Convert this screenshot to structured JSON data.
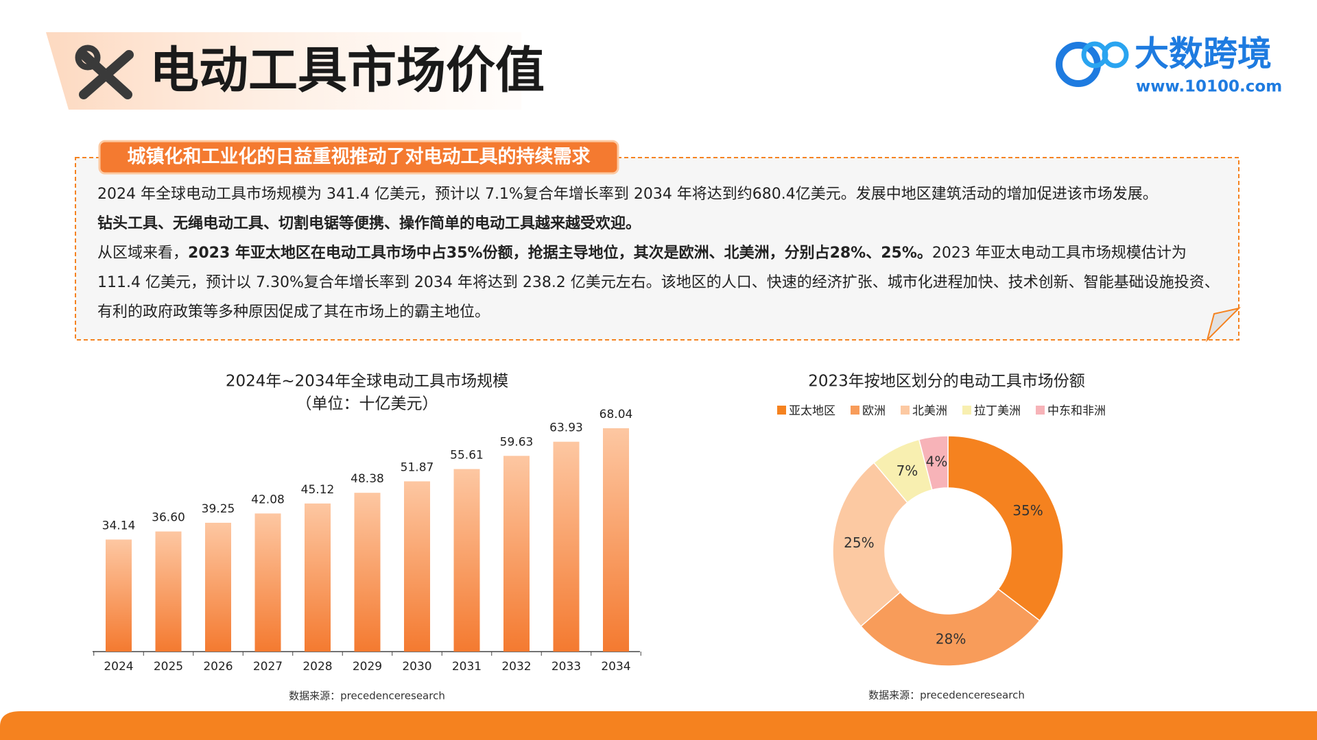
{
  "header": {
    "title": "电动工具市场价值",
    "logo_text": "大数跨境",
    "logo_url": "www.10100.com"
  },
  "summary": {
    "heading": "城镇化和工业化的日益重视推动了对电动工具的持续需求",
    "paragraphs": [
      [
        {
          "text": "2024 年全球电动工具市场规模为 341.4 亿美元，预计以 7.1%复合年增长率到 2034 年将达到约680.4亿美元。发展中地区建筑活动的增加促进该市场发展。",
          "bold": false
        }
      ],
      [
        {
          "text": "钻头工具、无绳电动工具、切割电锯等便携、操作简单的电动工具越来越受欢迎。",
          "bold": true
        }
      ],
      [
        {
          "text": "从区域来看，",
          "bold": false
        },
        {
          "text": "2023 年亚太地区在电动工具市场中占35%份额，抢据主导地位，其次是欧洲、北美洲，分别占28%、25%。",
          "bold": true
        },
        {
          "text": "2023 年亚太电动工具市场规模估计为 111.4 亿美元，预计以 7.30%复合年增长率到 2034 年将达到 238.2 亿美元左右。该地区的人口、快速的经济扩张、城市化进程加快、技术创新、智能基础设施投资、有利的政府政策等多种原因促成了其在市场上的霸主地位。",
          "bold": false
        }
      ]
    ]
  },
  "chart_data": [
    {
      "type": "bar",
      "title": "2024年~2034年全球电动工具市场规模",
      "subtitle": "（单位：十亿美元）",
      "categories": [
        "2024",
        "2025",
        "2026",
        "2027",
        "2028",
        "2029",
        "2030",
        "2031",
        "2032",
        "2033",
        "2034"
      ],
      "values": [
        34.14,
        36.6,
        39.25,
        42.08,
        45.12,
        48.38,
        51.87,
        55.61,
        59.63,
        63.93,
        68.04
      ],
      "value_labels": [
        "34.14",
        "36.60",
        "39.25",
        "42.08",
        "45.12",
        "48.38",
        "51.87",
        "55.61",
        "59.63",
        "63.93",
        "68.04"
      ],
      "color": "#f47a30",
      "source": "数据来源：precedenceresearch"
    },
    {
      "type": "pie",
      "title": "2023年按地区划分的电动工具市场份额",
      "categories": [
        "亚太地区",
        "欧洲",
        "北美洲",
        "拉丁美洲",
        "中东和非洲"
      ],
      "values": [
        35,
        28,
        25,
        7,
        4
      ],
      "value_labels": [
        "35%",
        "28%",
        "25%",
        "7%",
        "4%"
      ],
      "colors": [
        "#f5821f",
        "#f89c5a",
        "#fcc9a2",
        "#f8efb0",
        "#f7b3b8"
      ],
      "source": "数据来源：precedenceresearch"
    }
  ]
}
